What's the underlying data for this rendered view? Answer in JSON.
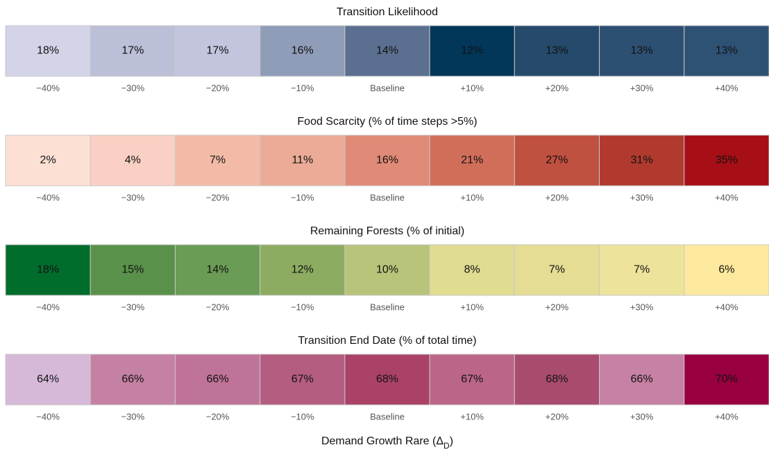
{
  "chart_data": [
    {
      "type": "heatmap",
      "title": "Transition Likelihood",
      "categories": [
        "−40%",
        "−30%",
        "−20%",
        "−10%",
        "Baseline",
        "+10%",
        "+20%",
        "+30%",
        "+40%"
      ],
      "values": [
        18,
        17,
        17,
        16,
        14,
        12,
        13,
        13,
        13
      ],
      "value_labels": [
        "18%",
        "17%",
        "17%",
        "16%",
        "14%",
        "12%",
        "13%",
        "13%",
        "13%"
      ],
      "colors": [
        "#d3d4e8",
        "#bbbfd8",
        "#c2c5dd",
        "#909db8",
        "#5b6f90",
        "#03375a",
        "#254a6b",
        "#2d4f72",
        "#2e5274"
      ]
    },
    {
      "type": "heatmap",
      "title": "Food Scarcity (% of time steps >5%)",
      "categories": [
        "−40%",
        "−30%",
        "−20%",
        "−10%",
        "Baseline",
        "+10%",
        "+20%",
        "+30%",
        "+40%"
      ],
      "values": [
        2,
        4,
        7,
        11,
        16,
        21,
        27,
        31,
        35
      ],
      "value_labels": [
        "2%",
        "4%",
        "7%",
        "11%",
        "16%",
        "21%",
        "27%",
        "31%",
        "35%"
      ],
      "colors": [
        "#fde0d4",
        "#f9d0c3",
        "#f3bba7",
        "#ebab96",
        "#e08b77",
        "#d16e5a",
        "#c05040",
        "#b03a2e",
        "#a50f15"
      ]
    },
    {
      "type": "heatmap",
      "title": "Remaining Forests (% of initial)",
      "categories": [
        "−40%",
        "−30%",
        "−20%",
        "−10%",
        "Baseline",
        "+10%",
        "+20%",
        "+30%",
        "+40%"
      ],
      "values": [
        18,
        15,
        14,
        12,
        10,
        8,
        7,
        7,
        6
      ],
      "value_labels": [
        "18%",
        "15%",
        "14%",
        "12%",
        "10%",
        "8%",
        "7%",
        "7%",
        "6%"
      ],
      "colors": [
        "#006d2c",
        "#5a914a",
        "#6b9c55",
        "#8dac62",
        "#b8c47a",
        "#e0dc90",
        "#e4dd93",
        "#eee39a",
        "#fde99d"
      ]
    },
    {
      "type": "heatmap",
      "title": "Transition End Date (% of total time)",
      "categories": [
        "−40%",
        "−30%",
        "−20%",
        "−10%",
        "Baseline",
        "+10%",
        "+20%",
        "+30%",
        "+40%"
      ],
      "values": [
        64,
        66,
        66,
        67,
        68,
        67,
        68,
        66,
        70
      ],
      "value_labels": [
        "64%",
        "66%",
        "66%",
        "67%",
        "68%",
        "67%",
        "68%",
        "66%",
        "70%"
      ],
      "colors": [
        "#d6b9d9",
        "#c581a3",
        "#c07398",
        "#b45d80",
        "#aa4268",
        "#bb6688",
        "#a94b6f",
        "#c681a4",
        "#98003f"
      ],
      "xlabel": [
        "Demand Growth Rare (Δ",
        "D",
        ")"
      ]
    }
  ]
}
